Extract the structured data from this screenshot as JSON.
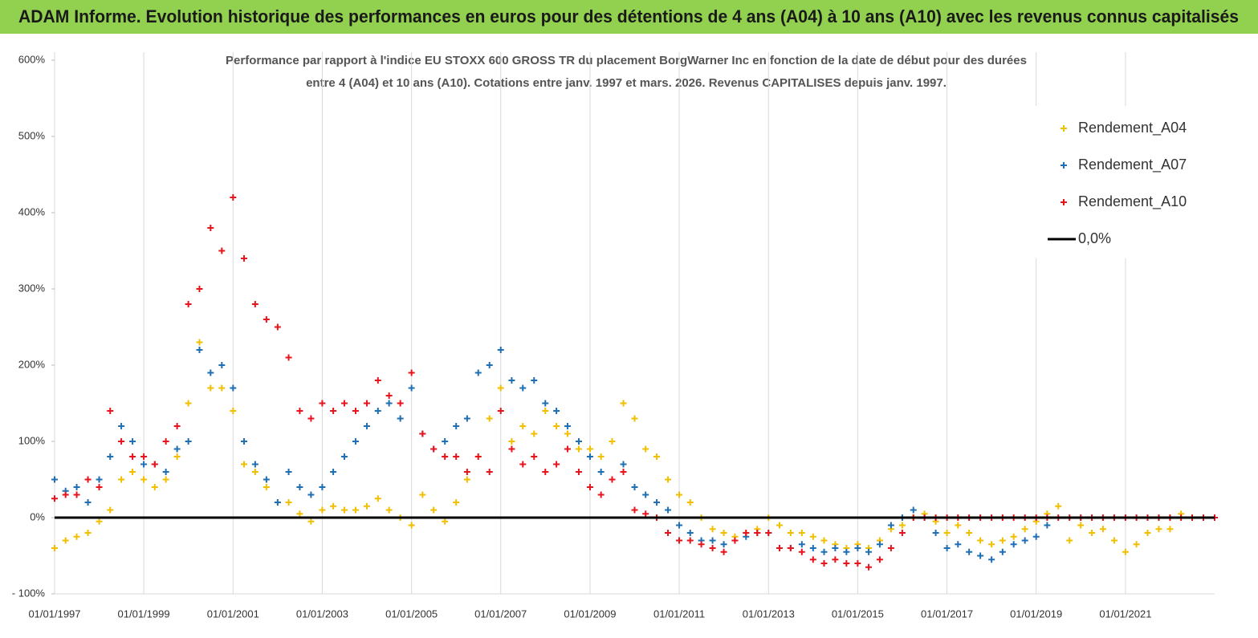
{
  "header": {
    "title": "ADAM Informe. Evolution historique des performances en euros pour des détentions de 4 ans (A04) à 10 ans (A10) avec les revenus connus capitalisés"
  },
  "chart_data": {
    "type": "scatter",
    "subtitle": [
      "Performance par rapport à l'indice EU STOXX 600 GROSS TR  du placement BorgWarner Inc en fonction de la date de début pour des durées",
      "entre 4 (A04) et 10 ans (A10). Cotations entre janv. 1997 et mars. 2026. Revenus CAPITALISES depuis janv. 1997."
    ],
    "x": [
      "1997-01-01",
      "1997-04-01",
      "1997-07-01",
      "1997-10-01",
      "1998-01-01",
      "1998-04-01",
      "1998-07-01",
      "1998-10-01",
      "1999-01-01",
      "1999-04-01",
      "1999-07-01",
      "1999-10-01",
      "2000-01-01",
      "2000-04-01",
      "2000-07-01",
      "2000-10-01",
      "2001-01-01",
      "2001-04-01",
      "2001-07-01",
      "2001-10-01",
      "2002-01-01",
      "2002-04-01",
      "2002-07-01",
      "2002-10-01",
      "2003-01-01",
      "2003-04-01",
      "2003-07-01",
      "2003-10-01",
      "2004-01-01",
      "2004-04-01",
      "2004-07-01",
      "2004-10-01",
      "2005-01-01",
      "2005-04-01",
      "2005-07-01",
      "2005-10-01",
      "2006-01-01",
      "2006-04-01",
      "2006-07-01",
      "2006-10-01",
      "2007-01-01",
      "2007-04-01",
      "2007-07-01",
      "2007-10-01",
      "2008-01-01",
      "2008-04-01",
      "2008-07-01",
      "2008-10-01",
      "2009-01-01",
      "2009-04-01",
      "2009-07-01",
      "2009-10-01",
      "2010-01-01",
      "2010-04-01",
      "2010-07-01",
      "2010-10-01",
      "2011-01-01",
      "2011-04-01",
      "2011-07-01",
      "2011-10-01",
      "2012-01-01",
      "2012-04-01",
      "2012-07-01",
      "2012-10-01",
      "2013-01-01",
      "2013-04-01",
      "2013-07-01",
      "2013-10-01",
      "2014-01-01",
      "2014-04-01",
      "2014-07-01",
      "2014-10-01",
      "2015-01-01",
      "2015-04-01",
      "2015-07-01",
      "2015-10-01",
      "2016-01-01",
      "2016-04-01",
      "2016-07-01",
      "2016-10-01",
      "2017-01-01",
      "2017-04-01",
      "2017-07-01",
      "2017-10-01",
      "2018-01-01",
      "2018-04-01",
      "2018-07-01",
      "2018-10-01",
      "2019-01-01",
      "2019-04-01",
      "2019-07-01",
      "2019-10-01",
      "2020-01-01",
      "2020-04-01",
      "2020-07-01",
      "2020-10-01",
      "2021-01-01",
      "2021-04-01",
      "2021-07-01",
      "2021-10-01",
      "2022-01-01",
      "2022-04-01",
      "2022-07-01",
      "2022-10-01",
      "2023-01-01"
    ],
    "series": [
      {
        "name": "Rendement_A04",
        "color": "#f2bf00",
        "values": [
          -40,
          -30,
          -25,
          -20,
          -5,
          10,
          50,
          60,
          50,
          40,
          50,
          80,
          150,
          230,
          170,
          170,
          140,
          70,
          60,
          40,
          20,
          20,
          5,
          -5,
          10,
          15,
          10,
          10,
          15,
          25,
          10,
          0,
          -10,
          30,
          10,
          -5,
          20,
          50,
          80,
          130,
          170,
          100,
          120,
          110,
          140,
          120,
          110,
          90,
          90,
          80,
          100,
          150,
          130,
          90,
          80,
          50,
          30,
          20,
          0,
          -15,
          -20,
          -25,
          -20,
          -15,
          0,
          -10,
          -20,
          -20,
          -25,
          -30,
          -35,
          -40,
          -35,
          -40,
          -30,
          -15,
          -10,
          0,
          5,
          -5,
          -20,
          -10,
          -20,
          -30,
          -35,
          -30,
          -25,
          -15,
          -5,
          5,
          15,
          -30,
          -10,
          -20,
          -15,
          -30,
          -45,
          -35,
          -20,
          -15,
          -15,
          5,
          0,
          0,
          null
        ]
      },
      {
        "name": "Rendement_A07",
        "color": "#1f6fb5",
        "values": [
          50,
          35,
          40,
          20,
          50,
          80,
          120,
          100,
          70,
          70,
          60,
          90,
          100,
          220,
          190,
          200,
          170,
          100,
          70,
          50,
          20,
          60,
          40,
          30,
          40,
          60,
          80,
          100,
          120,
          140,
          150,
          130,
          170,
          110,
          90,
          100,
          120,
          130,
          190,
          200,
          220,
          180,
          170,
          180,
          150,
          140,
          120,
          100,
          80,
          60,
          50,
          70,
          40,
          30,
          20,
          10,
          -10,
          -20,
          -30,
          -30,
          -35,
          -30,
          -25,
          -20,
          -20,
          -40,
          -40,
          -35,
          -40,
          -45,
          -40,
          -45,
          -40,
          -45,
          -35,
          -10,
          0,
          10,
          0,
          -20,
          -40,
          -35,
          -45,
          -50,
          -55,
          -45,
          -35,
          -30,
          -25,
          -10,
          null,
          null,
          null,
          null,
          null,
          null,
          null,
          null,
          null,
          null,
          null,
          null,
          null,
          null,
          null
        ]
      },
      {
        "name": "Rendement_A10",
        "color": "#e8141c",
        "values": [
          25,
          30,
          30,
          50,
          40,
          140,
          100,
          80,
          80,
          70,
          100,
          120,
          280,
          300,
          380,
          350,
          420,
          340,
          280,
          260,
          250,
          210,
          140,
          130,
          150,
          140,
          150,
          140,
          150,
          180,
          160,
          150,
          190,
          110,
          90,
          80,
          80,
          60,
          80,
          60,
          140,
          90,
          70,
          80,
          60,
          70,
          90,
          60,
          40,
          30,
          50,
          60,
          10,
          5,
          0,
          -20,
          -30,
          -30,
          -35,
          -40,
          -45,
          -30,
          -20,
          -20,
          -20,
          -40,
          -40,
          -45,
          -55,
          -60,
          -55,
          -60,
          -60,
          -65,
          -55,
          -40,
          -20,
          0,
          0,
          0,
          0,
          0,
          0,
          0,
          0,
          0,
          0,
          0,
          0,
          0,
          0,
          0,
          0,
          0,
          0,
          0,
          0,
          0,
          0,
          0,
          0,
          0,
          0,
          0,
          0
        ]
      }
    ],
    "reference_line": {
      "name": "0,0%",
      "value": 0,
      "color": "#000000"
    },
    "xlim": [
      "1997-01-01",
      "2023-01-01"
    ],
    "xticks": [
      {
        "value": "1997-01-01",
        "label": "01/01/1997"
      },
      {
        "value": "1999-01-01",
        "label": "01/01/1999"
      },
      {
        "value": "2001-01-01",
        "label": "01/01/2001"
      },
      {
        "value": "2003-01-01",
        "label": "01/01/2003"
      },
      {
        "value": "2005-01-01",
        "label": "01/01/2005"
      },
      {
        "value": "2007-01-01",
        "label": "01/01/2007"
      },
      {
        "value": "2009-01-01",
        "label": "01/01/2009"
      },
      {
        "value": "2011-01-01",
        "label": "01/01/2011"
      },
      {
        "value": "2013-01-01",
        "label": "01/01/2013"
      },
      {
        "value": "2015-01-01",
        "label": "01/01/2015"
      },
      {
        "value": "2017-01-01",
        "label": "01/01/2017"
      },
      {
        "value": "2019-01-01",
        "label": "01/01/2019"
      },
      {
        "value": "2021-01-01",
        "label": "01/01/2021"
      }
    ],
    "ylim": [
      -100,
      600
    ],
    "yticks": [
      {
        "value": -100,
        "label": "- 100%"
      },
      {
        "value": 0,
        "label": "0%"
      },
      {
        "value": 100,
        "label": "100%"
      },
      {
        "value": 200,
        "label": "200%"
      },
      {
        "value": 300,
        "label": "300%"
      },
      {
        "value": 400,
        "label": "400%"
      },
      {
        "value": 500,
        "label": "500%"
      },
      {
        "value": 600,
        "label": "600%"
      }
    ],
    "xgrid": true,
    "legend": "top-right"
  }
}
